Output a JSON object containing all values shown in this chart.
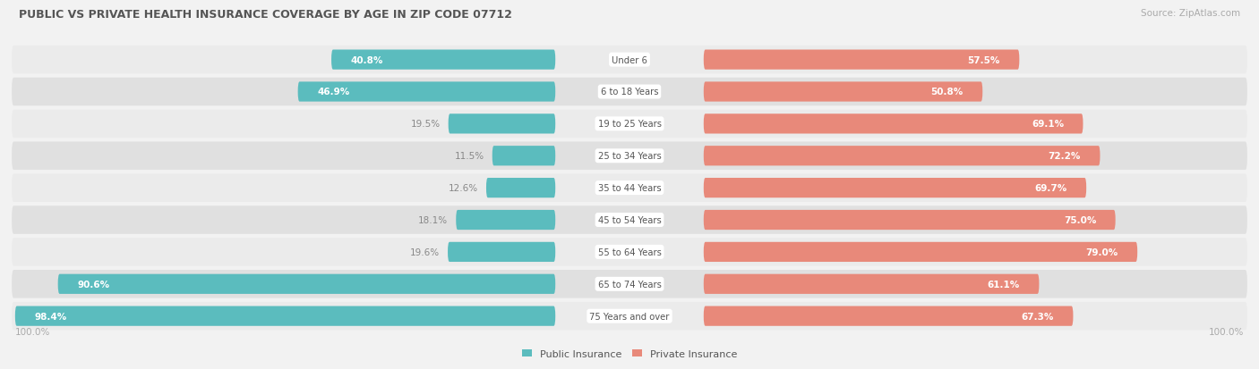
{
  "title": "PUBLIC VS PRIVATE HEALTH INSURANCE COVERAGE BY AGE IN ZIP CODE 07712",
  "source": "Source: ZipAtlas.com",
  "categories": [
    "Under 6",
    "6 to 18 Years",
    "19 to 25 Years",
    "25 to 34 Years",
    "35 to 44 Years",
    "45 to 54 Years",
    "55 to 64 Years",
    "65 to 74 Years",
    "75 Years and over"
  ],
  "public_values": [
    40.8,
    46.9,
    19.5,
    11.5,
    12.6,
    18.1,
    19.6,
    90.6,
    98.4
  ],
  "private_values": [
    57.5,
    50.8,
    69.1,
    72.2,
    69.7,
    75.0,
    79.0,
    61.1,
    67.3
  ],
  "public_color": "#5bbcbe",
  "private_color": "#e8897a",
  "bg_color": "#f2f2f2",
  "row_bg_light": "#ebebeb",
  "row_bg_dark": "#e0e0e0",
  "title_color": "#555555",
  "source_color": "#aaaaaa",
  "axis_label_color": "#aaaaaa",
  "legend_public": "Public Insurance",
  "legend_private": "Private Insurance",
  "inside_label_color": "#ffffff",
  "outside_label_color": "#888888",
  "center_label_color": "#555555"
}
